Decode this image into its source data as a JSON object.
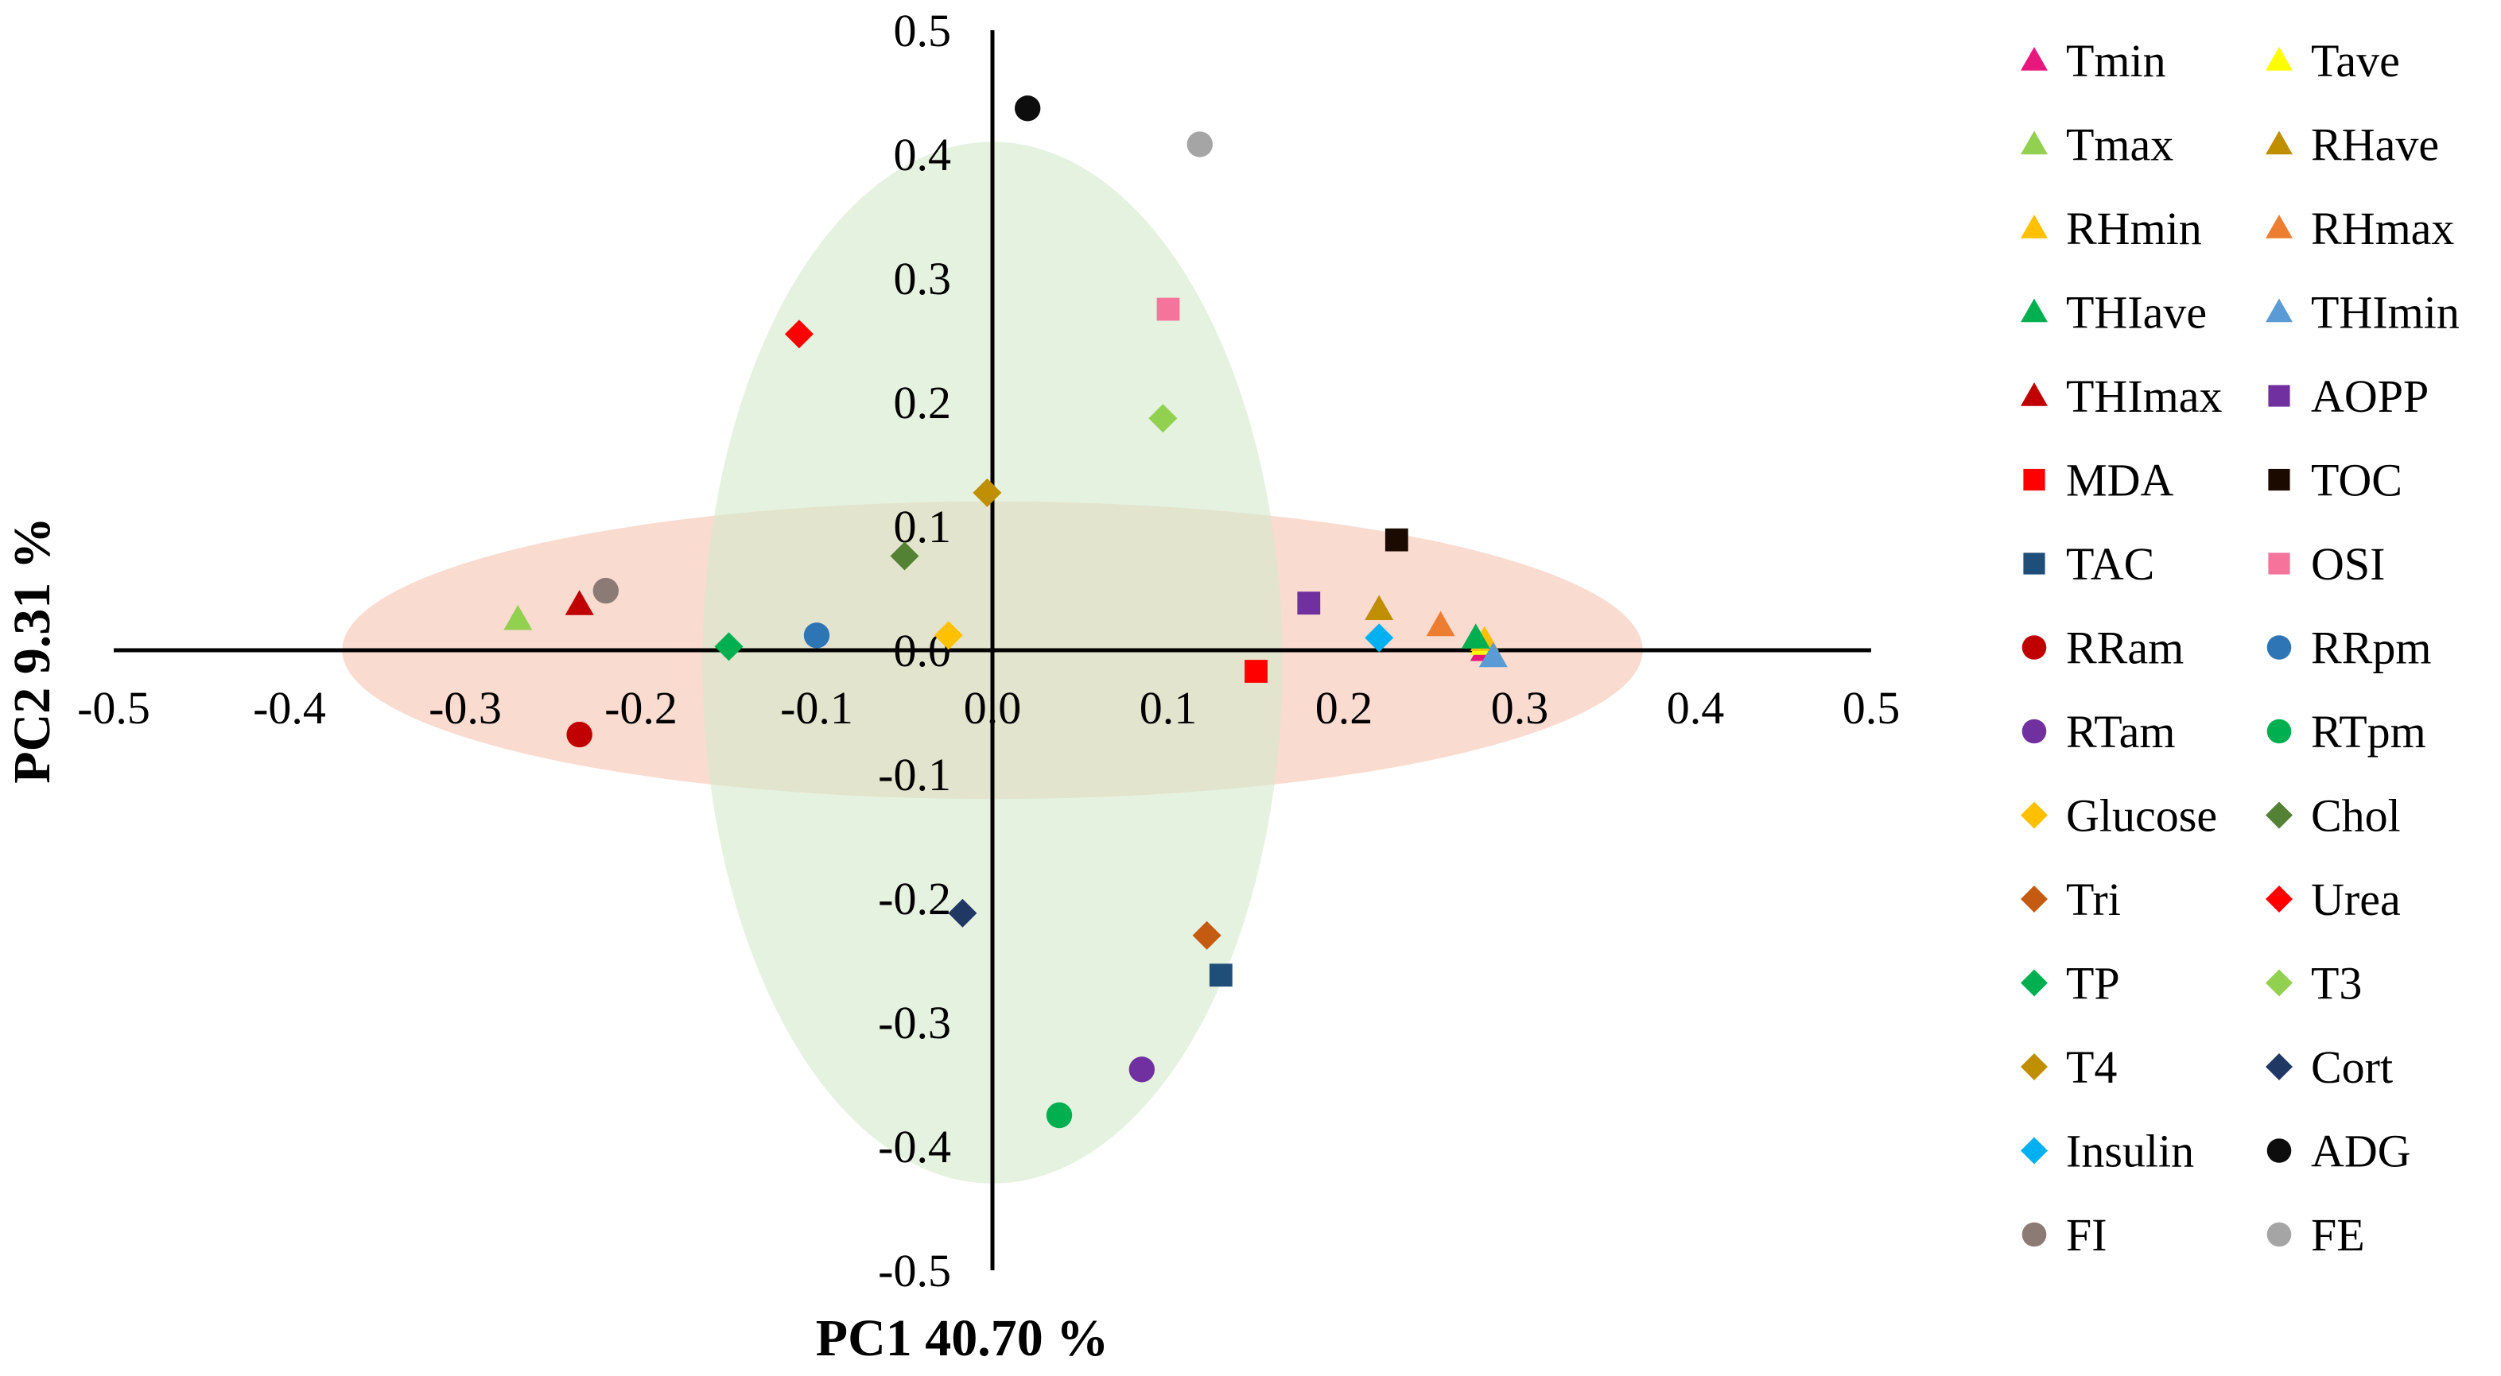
{
  "chart_data": {
    "type": "scatter",
    "xlabel": "PC1 40.70 %",
    "ylabel": "PC2 9.31 %",
    "xlim": [
      -0.5,
      0.5
    ],
    "ylim": [
      -0.5,
      0.5
    ],
    "x_ticks": [
      "-0.5",
      "-0.4",
      "-0.3",
      "-0.2",
      "-0.1",
      "0.0",
      "0.1",
      "0.2",
      "0.3",
      "0.4",
      "0.5"
    ],
    "y_ticks": [
      "0.5",
      "0.4",
      "0.3",
      "0.2",
      "0.1",
      "0.0",
      "-0.1",
      "-0.2",
      "-0.3",
      "-0.4",
      "-0.5"
    ],
    "grid": false,
    "legend_position": "right",
    "ellipses": [
      {
        "cx": 0.0,
        "cy": 0.0,
        "rx": 0.37,
        "ry": 0.12,
        "color": "#f8d5c8"
      },
      {
        "cx": 0.0,
        "cy": -0.01,
        "rx": 0.165,
        "ry": 0.42,
        "color": "#d4e9cc"
      }
    ],
    "series": [
      {
        "name": "Tmin",
        "marker": "triangle",
        "color": "#e8177d",
        "x": 0.28,
        "y": 0.0
      },
      {
        "name": "Tave",
        "marker": "triangle",
        "color": "#ffff00",
        "x": 0.28,
        "y": 0.005
      },
      {
        "name": "Tmax",
        "marker": "triangle",
        "color": "#92d050",
        "x": -0.27,
        "y": 0.025
      },
      {
        "name": "RHave",
        "marker": "triangle",
        "color": "#bf8f00",
        "x": 0.22,
        "y": 0.033
      },
      {
        "name": "RHmin",
        "marker": "triangle",
        "color": "#ffc000",
        "x": 0.28,
        "y": 0.008
      },
      {
        "name": "RHmax",
        "marker": "triangle",
        "color": "#ed7d31",
        "x": 0.255,
        "y": 0.02
      },
      {
        "name": "THIave",
        "marker": "triangle",
        "color": "#00b050",
        "x": 0.275,
        "y": 0.01
      },
      {
        "name": "THImin",
        "marker": "triangle",
        "color": "#5b9bd5",
        "x": 0.285,
        "y": -0.005
      },
      {
        "name": "THImax",
        "marker": "triangle",
        "color": "#c00000",
        "x": -0.235,
        "y": 0.037
      },
      {
        "name": "AOPP",
        "marker": "square",
        "color": "#7030a0",
        "x": 0.18,
        "y": 0.038
      },
      {
        "name": "MDA",
        "marker": "square",
        "color": "#ff0000",
        "x": 0.15,
        "y": -0.017
      },
      {
        "name": "TOC",
        "marker": "square",
        "color": "#1a0a00",
        "x": 0.23,
        "y": 0.089
      },
      {
        "name": "TAC",
        "marker": "square",
        "color": "#1f4e79",
        "x": 0.13,
        "y": -0.262
      },
      {
        "name": "OSI",
        "marker": "square",
        "color": "#f4749c",
        "x": 0.1,
        "y": 0.275
      },
      {
        "name": "RRam",
        "marker": "circle",
        "color": "#c00000",
        "x": -0.235,
        "y": -0.068
      },
      {
        "name": "RRpm",
        "marker": "circle",
        "color": "#2e75b6",
        "x": -0.1,
        "y": 0.012
      },
      {
        "name": "RTam",
        "marker": "circle",
        "color": "#7030a0",
        "x": 0.085,
        "y": -0.338
      },
      {
        "name": "RTpm",
        "marker": "circle",
        "color": "#00b050",
        "x": 0.038,
        "y": -0.375
      },
      {
        "name": "Glucose",
        "marker": "diamond",
        "color": "#ffc000",
        "x": -0.025,
        "y": 0.012
      },
      {
        "name": "Chol",
        "marker": "diamond",
        "color": "#548235",
        "x": -0.05,
        "y": 0.076
      },
      {
        "name": "Tri",
        "marker": "diamond",
        "color": "#c55a11",
        "x": 0.122,
        "y": -0.23
      },
      {
        "name": "Urea",
        "marker": "diamond",
        "color": "#ff0000",
        "x": -0.11,
        "y": 0.255
      },
      {
        "name": "TP",
        "marker": "diamond",
        "color": "#00b050",
        "x": -0.15,
        "y": 0.003
      },
      {
        "name": "T3",
        "marker": "diamond",
        "color": "#92d050",
        "x": 0.097,
        "y": 0.187
      },
      {
        "name": "T4",
        "marker": "diamond",
        "color": "#bf8f00",
        "x": -0.003,
        "y": 0.127
      },
      {
        "name": "Cort",
        "marker": "diamond",
        "color": "#203864",
        "x": -0.017,
        "y": -0.212
      },
      {
        "name": "Insulin",
        "marker": "diamond",
        "color": "#00b0f0",
        "x": 0.22,
        "y": 0.01
      },
      {
        "name": "ADG",
        "marker": "circle",
        "color": "#0d0d0d",
        "x": 0.02,
        "y": 0.437
      },
      {
        "name": "FI",
        "marker": "circle",
        "color": "#8c7b75",
        "x": -0.22,
        "y": 0.048
      },
      {
        "name": "FE",
        "marker": "circle",
        "color": "#a5a5a5",
        "x": 0.118,
        "y": 0.408
      }
    ]
  }
}
